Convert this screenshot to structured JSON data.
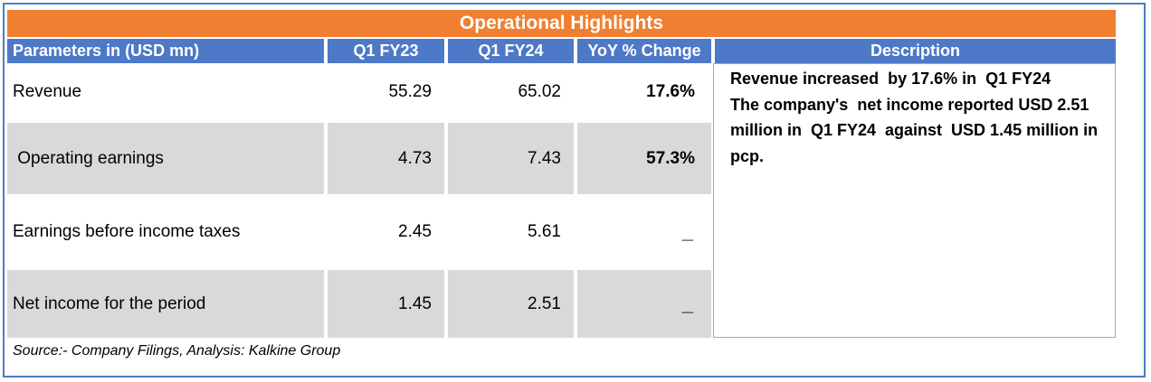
{
  "title": "Operational Highlights",
  "headers": {
    "parameters": "Parameters in (USD mn)",
    "q1_fy23": "Q1 FY23",
    "q1_fy24": "Q1 FY24",
    "yoy": "YoY % Change",
    "description": "Description"
  },
  "rows": [
    {
      "label": "Revenue",
      "q1_fy23": "55.29",
      "q1_fy24": "65.02",
      "yoy": "17.6%"
    },
    {
      "label": " Operating earnings",
      "q1_fy23": "4.73",
      "q1_fy24": "7.43",
      "yoy": "57.3%"
    },
    {
      "label": "Earnings before income taxes",
      "q1_fy23": "2.45",
      "q1_fy24": "5.61",
      "yoy": "_"
    },
    {
      "label": "Net income for the period",
      "q1_fy23": "1.45",
      "q1_fy24": "2.51",
      "yoy": "_"
    }
  ],
  "description": {
    "line1": "Revenue increased  by 17.6% in  Q1 FY24",
    "line2": "The company's  net income reported USD 2.51 million in  Q1 FY24  against  USD 1.45 million in pcp."
  },
  "source": "Source:- Company Filings, Analysis: Kalkine Group",
  "colors": {
    "title_bar": "#f07f31",
    "header": "#4d79c7",
    "shaded_row": "#d9d9d9",
    "frame_border": "#4a7ec4"
  }
}
